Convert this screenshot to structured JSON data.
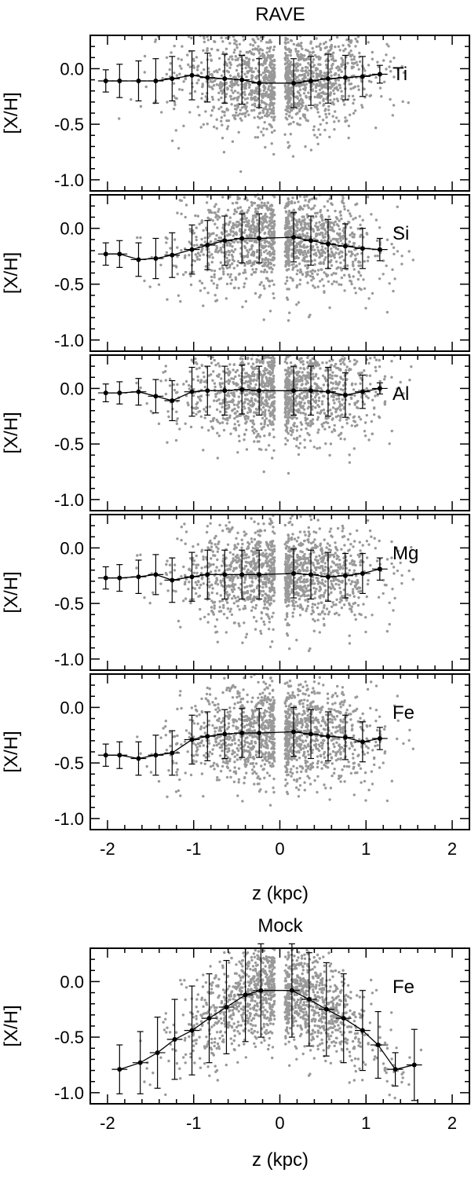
{
  "figure": {
    "titles": {
      "top": "RAVE",
      "bottom": "Mock"
    },
    "xlabel": "z (kpc)",
    "ylabel": "[X/H]",
    "colors": {
      "points": "#999999",
      "line": "#000000",
      "axes": "#000000"
    }
  },
  "chart_data": [
    {
      "type": "scatter",
      "title": "RAVE",
      "annotation": "Ti",
      "xlim": [
        -2.2,
        2.2
      ],
      "ylim": [
        -1.1,
        0.3
      ],
      "xticks": [
        "-2",
        "-1",
        "0",
        "1",
        "2"
      ],
      "yticks": [
        "0.0",
        "-0.5",
        "-1.0"
      ],
      "series": [
        {
          "x": [
            -2.02,
            -1.86,
            -1.64,
            -1.44,
            -1.25,
            -1.02,
            -0.84,
            -0.64,
            -0.44,
            -0.24,
            0.16,
            0.36,
            0.56,
            0.76,
            0.96,
            1.16
          ],
          "y": [
            -0.11,
            -0.11,
            -0.11,
            -0.11,
            -0.09,
            -0.06,
            -0.08,
            -0.09,
            -0.1,
            -0.13,
            -0.13,
            -0.11,
            -0.09,
            -0.08,
            -0.07,
            -0.05
          ],
          "err": [
            0.1,
            0.15,
            0.18,
            0.2,
            0.2,
            0.22,
            0.22,
            0.22,
            0.22,
            0.22,
            0.22,
            0.22,
            0.22,
            0.2,
            0.18,
            0.08
          ]
        }
      ],
      "scatter_extent": {
        "x": [
          -1.9,
          1.6
        ],
        "y": [
          -0.95,
          0.3
        ]
      }
    },
    {
      "type": "scatter",
      "annotation": "Si",
      "xlim": [
        -2.2,
        2.2
      ],
      "ylim": [
        -1.1,
        0.3
      ],
      "xticks": [
        "-2",
        "-1",
        "0",
        "1",
        "2"
      ],
      "yticks": [
        "0.0",
        "-0.5",
        "-1.0"
      ],
      "series": [
        {
          "x": [
            -2.02,
            -1.86,
            -1.64,
            -1.44,
            -1.25,
            -1.02,
            -0.84,
            -0.64,
            -0.44,
            -0.24,
            0.16,
            0.36,
            0.56,
            0.76,
            0.96,
            1.16
          ],
          "y": [
            -0.23,
            -0.23,
            -0.28,
            -0.27,
            -0.24,
            -0.19,
            -0.15,
            -0.11,
            -0.09,
            -0.09,
            -0.08,
            -0.11,
            -0.14,
            -0.16,
            -0.18,
            -0.19
          ],
          "err": [
            0.1,
            0.12,
            0.15,
            0.18,
            0.2,
            0.22,
            0.22,
            0.22,
            0.22,
            0.22,
            0.22,
            0.22,
            0.22,
            0.2,
            0.18,
            0.1
          ]
        }
      ],
      "scatter_extent": {
        "x": [
          -1.9,
          1.6
        ],
        "y": [
          -1.0,
          0.3
        ]
      }
    },
    {
      "type": "scatter",
      "annotation": "Al",
      "xlim": [
        -2.2,
        2.2
      ],
      "ylim": [
        -1.1,
        0.3
      ],
      "xticks": [
        "-2",
        "-1",
        "0",
        "1",
        "2"
      ],
      "yticks": [
        "0.0",
        "-0.5",
        "-1.0"
      ],
      "series": [
        {
          "x": [
            -2.02,
            -1.86,
            -1.64,
            -1.44,
            -1.25,
            -1.02,
            -0.84,
            -0.64,
            -0.44,
            -0.24,
            0.16,
            0.36,
            0.56,
            0.76,
            0.96,
            1.16
          ],
          "y": [
            -0.04,
            -0.04,
            -0.03,
            -0.07,
            -0.11,
            -0.03,
            -0.02,
            -0.02,
            -0.01,
            -0.02,
            -0.02,
            -0.02,
            -0.03,
            -0.06,
            -0.03,
            0.0
          ],
          "err": [
            0.08,
            0.1,
            0.12,
            0.15,
            0.18,
            0.22,
            0.22,
            0.22,
            0.22,
            0.22,
            0.22,
            0.22,
            0.22,
            0.2,
            0.15,
            0.05
          ]
        }
      ],
      "scatter_extent": {
        "x": [
          -1.9,
          1.6
        ],
        "y": [
          -1.0,
          0.3
        ]
      }
    },
    {
      "type": "scatter",
      "annotation": "Mg",
      "xlim": [
        -2.2,
        2.2
      ],
      "ylim": [
        -1.1,
        0.3
      ],
      "xticks": [
        "-2",
        "-1",
        "0",
        "1",
        "2"
      ],
      "yticks": [
        "0.0",
        "-0.5",
        "-1.0"
      ],
      "series": [
        {
          "x": [
            -2.02,
            -1.86,
            -1.64,
            -1.44,
            -1.25,
            -1.02,
            -0.84,
            -0.64,
            -0.44,
            -0.24,
            0.16,
            0.36,
            0.56,
            0.76,
            0.96,
            1.16
          ],
          "y": [
            -0.27,
            -0.27,
            -0.26,
            -0.24,
            -0.29,
            -0.26,
            -0.24,
            -0.24,
            -0.24,
            -0.24,
            -0.23,
            -0.24,
            -0.26,
            -0.25,
            -0.23,
            -0.19
          ],
          "err": [
            0.1,
            0.12,
            0.15,
            0.18,
            0.2,
            0.22,
            0.22,
            0.22,
            0.22,
            0.22,
            0.22,
            0.22,
            0.22,
            0.2,
            0.18,
            0.1
          ]
        }
      ],
      "scatter_extent": {
        "x": [
          -1.9,
          1.6
        ],
        "y": [
          -0.95,
          0.3
        ]
      }
    },
    {
      "type": "scatter",
      "annotation": "Fe",
      "xlim": [
        -2.2,
        2.2
      ],
      "ylim": [
        -1.1,
        0.3
      ],
      "xticks": [
        "-2",
        "-1",
        "0",
        "1",
        "2"
      ],
      "yticks": [
        "0.0",
        "-0.5",
        "-1.0"
      ],
      "series": [
        {
          "x": [
            -2.02,
            -1.86,
            -1.64,
            -1.44,
            -1.25,
            -1.02,
            -0.84,
            -0.64,
            -0.44,
            -0.24,
            0.16,
            0.36,
            0.56,
            0.76,
            0.96,
            1.16
          ],
          "y": [
            -0.43,
            -0.43,
            -0.46,
            -0.43,
            -0.41,
            -0.29,
            -0.26,
            -0.24,
            -0.23,
            -0.23,
            -0.22,
            -0.24,
            -0.26,
            -0.27,
            -0.31,
            -0.28
          ],
          "err": [
            0.1,
            0.12,
            0.15,
            0.18,
            0.2,
            0.22,
            0.22,
            0.22,
            0.22,
            0.22,
            0.22,
            0.22,
            0.22,
            0.2,
            0.18,
            0.1
          ]
        }
      ],
      "scatter_extent": {
        "x": [
          -1.9,
          1.6
        ],
        "y": [
          -0.95,
          0.3
        ]
      }
    },
    {
      "type": "scatter",
      "title": "Mock",
      "annotation": "Fe",
      "xlim": [
        -2.2,
        2.2
      ],
      "ylim": [
        -1.1,
        0.3
      ],
      "xticks": [
        "-2",
        "-1",
        "0",
        "1",
        "2"
      ],
      "yticks": [
        "0.0",
        "-0.5",
        "-1.0"
      ],
      "series": [
        {
          "x": [
            -1.86,
            -1.62,
            -1.42,
            -1.22,
            -1.02,
            -0.82,
            -0.62,
            -0.4,
            -0.22,
            0.14,
            0.34,
            0.54,
            0.74,
            0.96,
            1.14,
            1.34,
            1.56
          ],
          "y": [
            -0.79,
            -0.73,
            -0.64,
            -0.52,
            -0.44,
            -0.33,
            -0.23,
            -0.12,
            -0.08,
            -0.08,
            -0.16,
            -0.25,
            -0.33,
            -0.44,
            -0.57,
            -0.79,
            -0.75
          ],
          "err": [
            0.22,
            0.28,
            0.32,
            0.36,
            0.4,
            0.4,
            0.42,
            0.42,
            0.42,
            0.42,
            0.42,
            0.42,
            0.4,
            0.36,
            0.3,
            0.15,
            0.32
          ]
        }
      ],
      "scatter_extent": {
        "x": [
          -2.0,
          1.8
        ],
        "y": [
          -1.1,
          0.3
        ]
      }
    }
  ]
}
